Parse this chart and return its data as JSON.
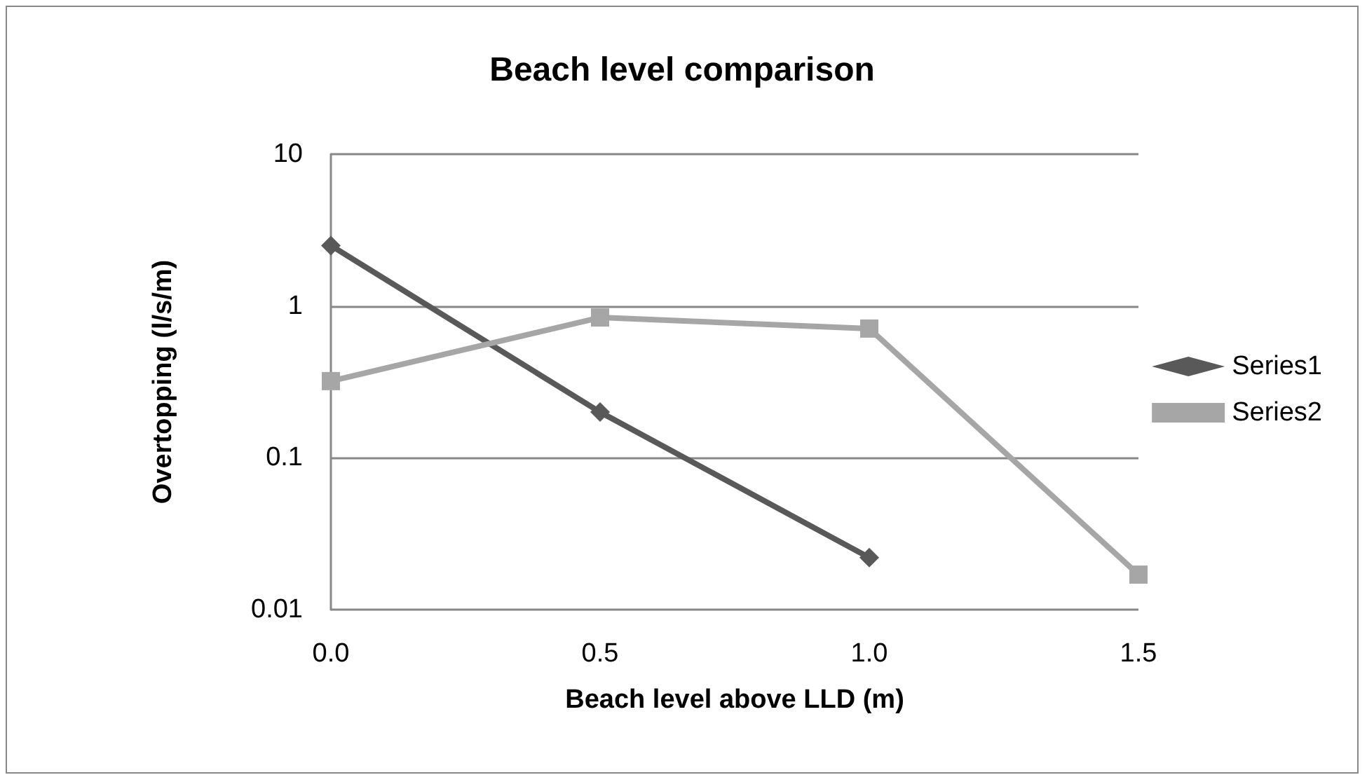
{
  "chart_data": {
    "type": "line",
    "title": "Beach level comparison",
    "xlabel": "Beach level above LLD (m)",
    "ylabel": "Overtopping (l/s/m)",
    "categories": [
      "0.0",
      "0.5",
      "1.0",
      "1.5"
    ],
    "series": [
      {
        "name": "Series1",
        "color": "#595959",
        "marker": "diamond",
        "values": [
          2.5,
          0.2,
          0.022,
          null
        ]
      },
      {
        "name": "Series2",
        "color": "#a6a6a6",
        "marker": "square",
        "values": [
          0.32,
          0.84,
          0.71,
          0.017
        ]
      }
    ],
    "log": true,
    "ylim": [
      0.01,
      10
    ],
    "yticks": [
      0.01,
      0.1,
      1,
      10
    ],
    "grid": "y",
    "legend": "right",
    "line_style": "solid"
  }
}
